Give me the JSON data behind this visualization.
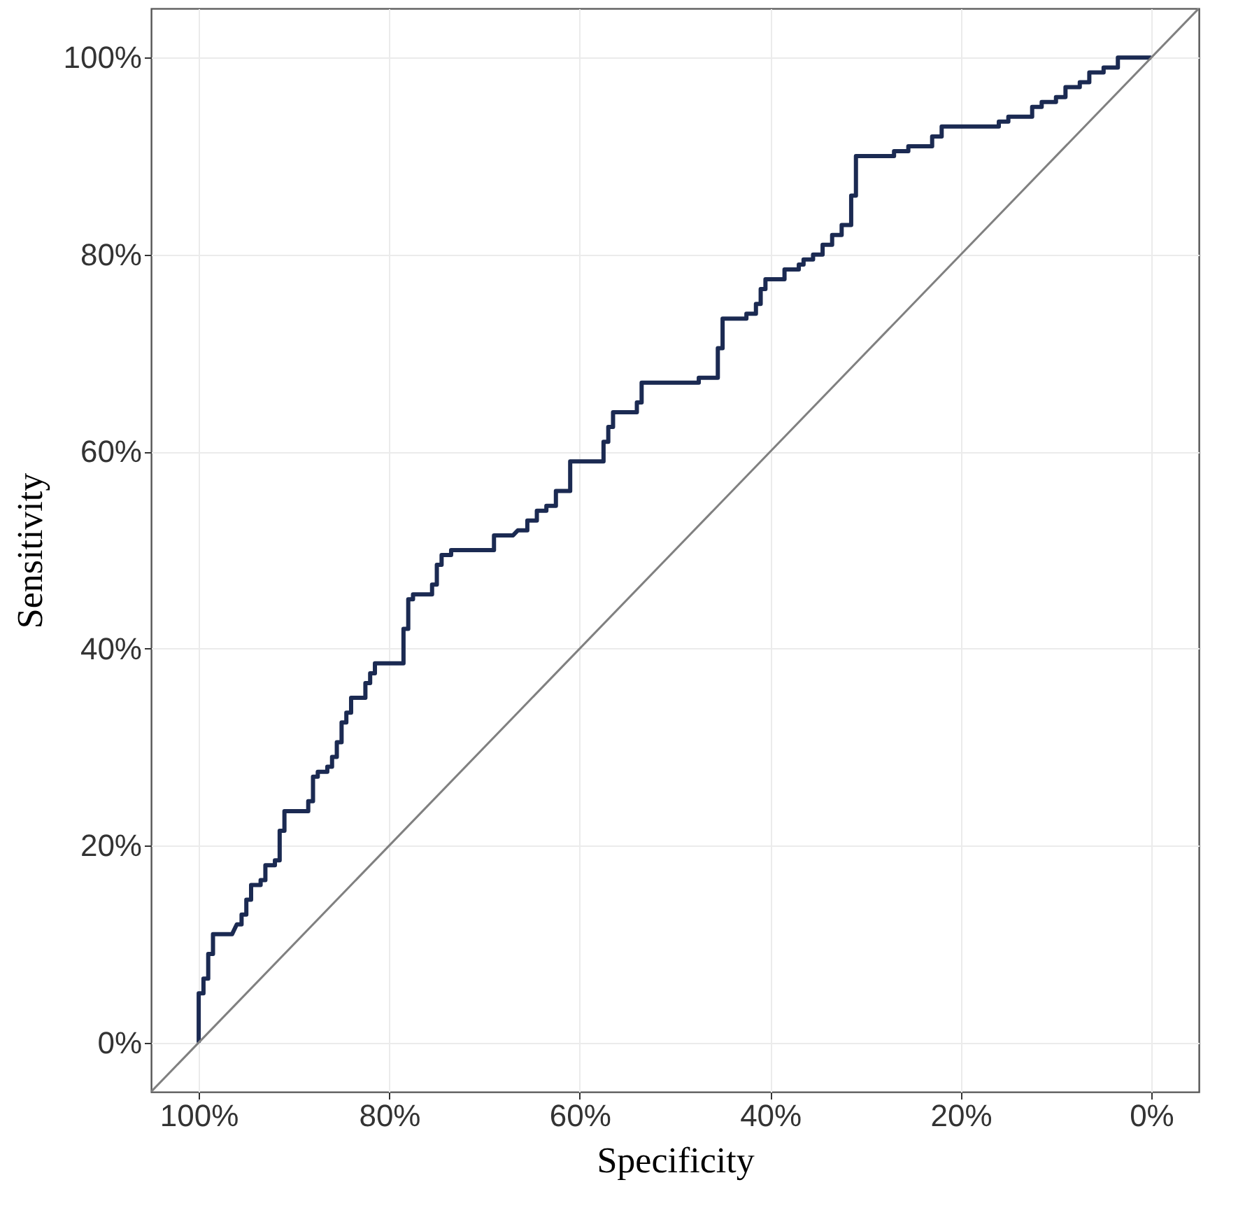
{
  "chart_data": {
    "type": "line",
    "xlabel": "Specificity",
    "ylabel": "Sensitivity",
    "xlim": [
      105,
      -5
    ],
    "ylim": [
      -5,
      105
    ],
    "xticks": [
      {
        "value": 100,
        "label": "100%"
      },
      {
        "value": 80,
        "label": "80%"
      },
      {
        "value": 60,
        "label": "60%"
      },
      {
        "value": 40,
        "label": "40%"
      },
      {
        "value": 20,
        "label": "20%"
      },
      {
        "value": 0,
        "label": "0%"
      }
    ],
    "yticks": [
      {
        "value": 0,
        "label": "0%"
      },
      {
        "value": 20,
        "label": "20%"
      },
      {
        "value": 40,
        "label": "40%"
      },
      {
        "value": 60,
        "label": "60%"
      },
      {
        "value": 80,
        "label": "80%"
      },
      {
        "value": 100,
        "label": "100%"
      }
    ],
    "grid": true,
    "series": [
      {
        "color": "#1b2a52",
        "x": [
          100,
          100,
          99.5,
          99.5,
          99,
          99,
          98.5,
          98.5,
          96.5,
          96,
          95.5,
          95.5,
          95,
          95,
          94.5,
          94.5,
          93.5,
          93.5,
          93,
          93,
          92,
          92,
          91.5,
          91.5,
          91,
          91,
          88.5,
          88.5,
          88,
          88,
          87.5,
          87.5,
          86.5,
          86.5,
          86,
          86,
          85.5,
          85.5,
          85,
          85,
          84.5,
          84.5,
          84,
          84,
          82.5,
          82.5,
          82,
          82,
          81.5,
          81.5,
          78.5,
          78.5,
          78,
          78,
          77.5,
          77.5,
          75.5,
          75.5,
          75,
          75,
          74.5,
          74.5,
          73.5,
          73.5,
          69,
          69,
          67,
          66.5,
          65.5,
          65.5,
          64.5,
          64.5,
          63.5,
          63.5,
          62.5,
          62.5,
          61,
          61,
          57.5,
          57.5,
          57,
          57,
          56.5,
          56.5,
          54,
          54,
          53.5,
          53.5,
          47.5,
          47.5,
          45.5,
          45.5,
          45,
          45,
          42.5,
          42.5,
          41.5,
          41.5,
          41,
          41,
          40.5,
          40.5,
          38.5,
          38.5,
          37,
          37,
          36.5,
          36.5,
          35.5,
          35.5,
          34.5,
          34.5,
          33.5,
          33.5,
          32.5,
          32.5,
          31.5,
          31.5,
          31,
          31,
          27,
          27,
          25.5,
          25.5,
          23,
          23,
          22,
          22,
          16,
          16,
          15,
          15,
          12.5,
          12.5,
          11.5,
          11.5,
          10,
          10,
          9,
          9,
          7.5,
          7.5,
          6.5,
          6.5,
          5,
          5,
          3.5,
          3.5,
          0
        ],
        "values": [
          0,
          5,
          5,
          6.5,
          6.5,
          9,
          9,
          11,
          11,
          12,
          12,
          13,
          13,
          14.5,
          14.5,
          16,
          16,
          16.5,
          16.5,
          18,
          18,
          18.5,
          18.5,
          21.5,
          21.5,
          23.5,
          23.5,
          24.5,
          24.5,
          27,
          27,
          27.5,
          27.5,
          28,
          28,
          29,
          29,
          30.5,
          30.5,
          32.5,
          32.5,
          33.5,
          33.5,
          35,
          35,
          36.5,
          36.5,
          37.5,
          37.5,
          38.5,
          38.5,
          42,
          42,
          45,
          45,
          45.5,
          45.5,
          46.5,
          46.5,
          48.5,
          48.5,
          49.5,
          49.5,
          50,
          50,
          51.5,
          51.5,
          52,
          52,
          53,
          53,
          54,
          54,
          54.5,
          54.5,
          56,
          56,
          59,
          59,
          61,
          61,
          62.5,
          62.5,
          64,
          64,
          65,
          65,
          67,
          67,
          67.5,
          67.5,
          70.5,
          70.5,
          73.5,
          73.5,
          74,
          74,
          75,
          75,
          76.5,
          76.5,
          77.5,
          77.5,
          78.5,
          78.5,
          79,
          79,
          79.5,
          79.5,
          80,
          80,
          81,
          81,
          82,
          82,
          83,
          83,
          86,
          86,
          90,
          90,
          90.5,
          90.5,
          91,
          91,
          92,
          92,
          93,
          93,
          93.5,
          93.5,
          94,
          94,
          95,
          95,
          95.5,
          95.5,
          96,
          96,
          97,
          97,
          97.5,
          97.5,
          98.5,
          98.5,
          99,
          99,
          100,
          100
        ]
      },
      {
        "color": "#808080",
        "x": [
          105,
          -5
        ],
        "values": [
          -5,
          105
        ]
      }
    ]
  }
}
